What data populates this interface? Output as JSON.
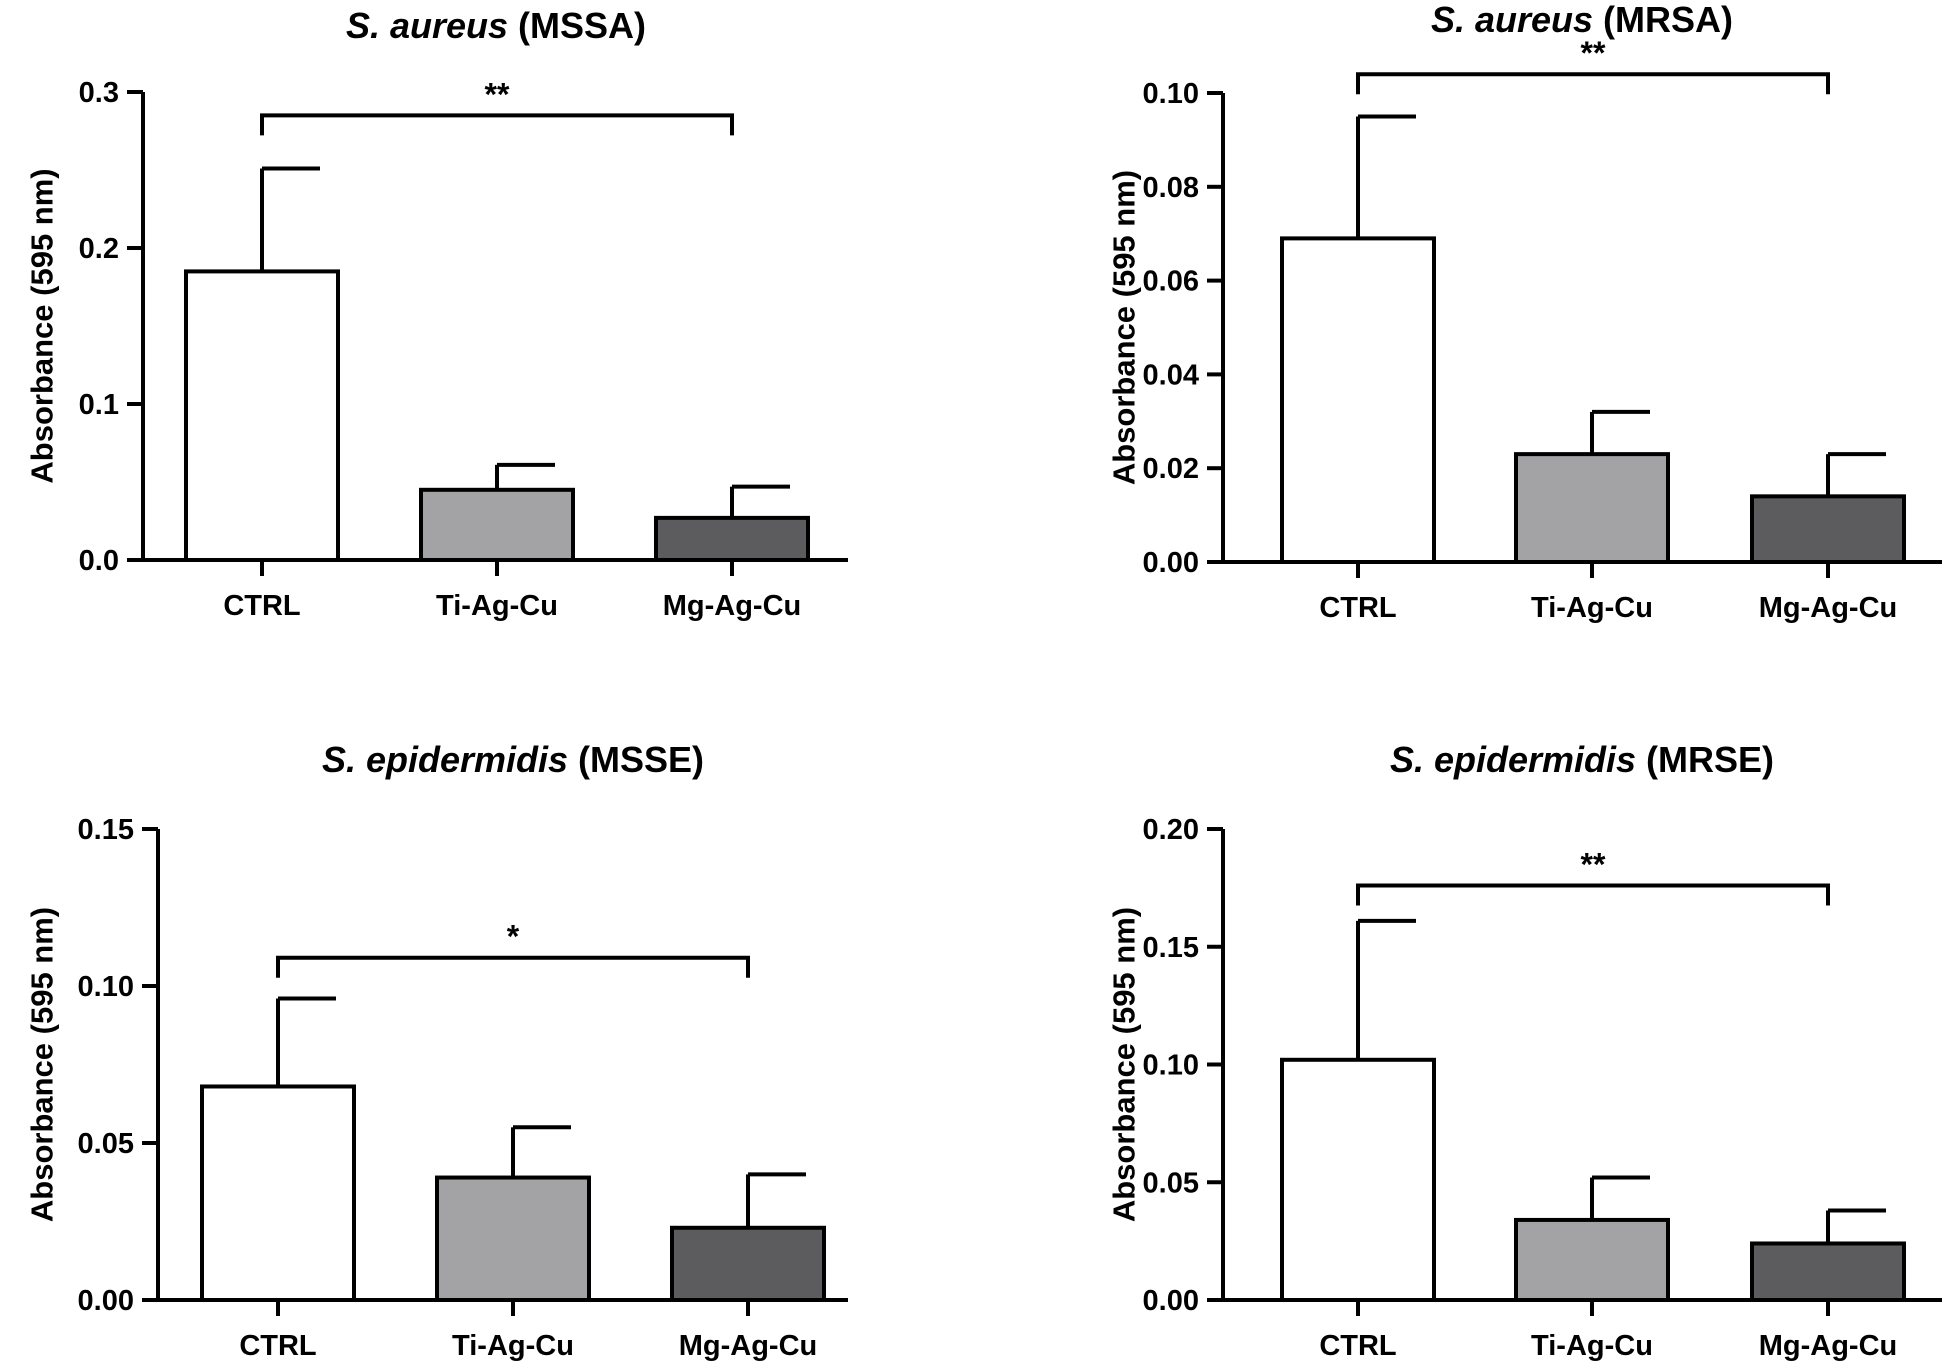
{
  "chart_data": [
    {
      "type": "bar",
      "title_italic": "S. aureus",
      "title_rest": " (MSSA)",
      "ylabel": "Absorbance (595 nm)",
      "categories": [
        "CTRL",
        "Ti-Ag-Cu",
        "Mg-Ag-Cu"
      ],
      "values": [
        0.185,
        0.045,
        0.027
      ],
      "errors": [
        0.066,
        0.016,
        0.02
      ],
      "ylim": [
        0,
        0.3
      ],
      "yticks": [
        0,
        0.1,
        0.2,
        0.3
      ],
      "ytick_labels": [
        "0.0",
        "0.1",
        "0.2",
        "0.3"
      ],
      "bar_colors": [
        "#ffffff",
        "#a3a3a6",
        "#5c5c5e"
      ],
      "significance": {
        "from": 0,
        "to": 2,
        "label": "**",
        "y": 0.285
      }
    },
    {
      "type": "bar",
      "title_italic": "S. aureus",
      "title_rest": " (MRSA)",
      "ylabel": "Absorbance (595 nm)",
      "categories": [
        "CTRL",
        "Ti-Ag-Cu",
        "Mg-Ag-Cu"
      ],
      "values": [
        0.069,
        0.023,
        0.014
      ],
      "errors": [
        0.026,
        0.009,
        0.009
      ],
      "ylim": [
        0,
        0.1
      ],
      "yticks": [
        0,
        0.02,
        0.04,
        0.06,
        0.08,
        0.1
      ],
      "ytick_labels": [
        "0.00",
        "0.02",
        "0.04",
        "0.06",
        "0.08",
        "0.10"
      ],
      "bar_colors": [
        "#ffffff",
        "#a3a3a6",
        "#5c5c5e"
      ],
      "significance": {
        "from": 0,
        "to": 2,
        "label": "**",
        "y": 0.104
      }
    },
    {
      "type": "bar",
      "title_italic": "S. epidermidis",
      "title_rest": " (MSSE)",
      "ylabel": "Absorbance (595 nm)",
      "categories": [
        "CTRL",
        "Ti-Ag-Cu",
        "Mg-Ag-Cu"
      ],
      "values": [
        0.068,
        0.039,
        0.023
      ],
      "errors": [
        0.028,
        0.016,
        0.017
      ],
      "ylim": [
        0,
        0.15
      ],
      "yticks": [
        0,
        0.05,
        0.1,
        0.15
      ],
      "ytick_labels": [
        "0.00",
        "0.05",
        "0.10",
        "0.15"
      ],
      "bar_colors": [
        "#ffffff",
        "#a3a3a6",
        "#5c5c5e"
      ],
      "significance": {
        "from": 0,
        "to": 2,
        "label": "*",
        "y": 0.109
      }
    },
    {
      "type": "bar",
      "title_italic": "S. epidermidis",
      "title_rest": " (MRSE)",
      "ylabel": "Absorbance (595 nm)",
      "categories": [
        "CTRL",
        "Ti-Ag-Cu",
        "Mg-Ag-Cu"
      ],
      "values": [
        0.102,
        0.034,
        0.024
      ],
      "errors": [
        0.059,
        0.018,
        0.014
      ],
      "ylim": [
        0,
        0.2
      ],
      "yticks": [
        0,
        0.05,
        0.1,
        0.15,
        0.2
      ],
      "ytick_labels": [
        "0.00",
        "0.05",
        "0.10",
        "0.15",
        "0.20"
      ],
      "bar_colors": [
        "#ffffff",
        "#a3a3a6",
        "#5c5c5e"
      ],
      "significance": {
        "from": 0,
        "to": 2,
        "label": "**",
        "y": 0.176
      }
    }
  ]
}
